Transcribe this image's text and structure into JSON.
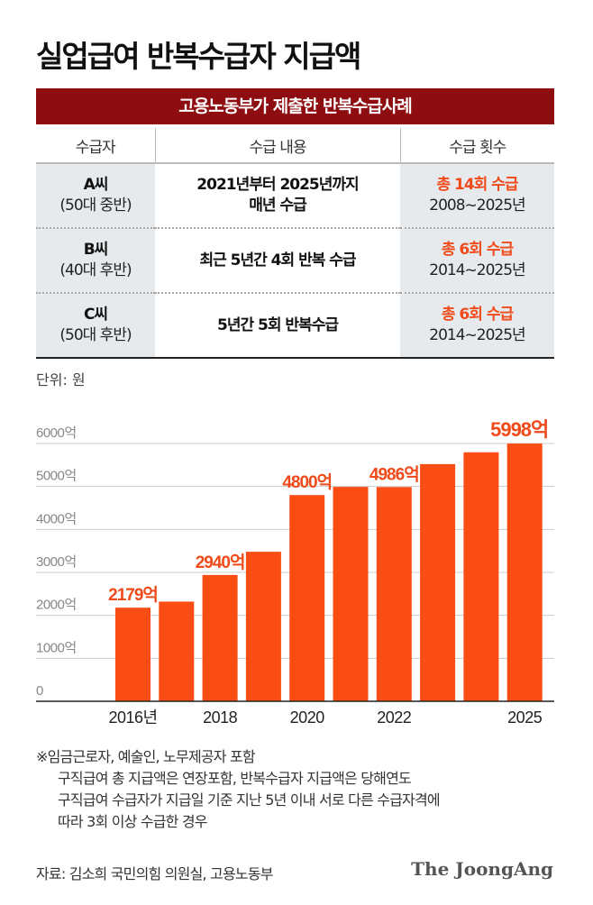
{
  "title": "실업급여 반복수급자 지급액",
  "table": {
    "caption": "고용노동부가 제출한 반복수급사례",
    "headers": [
      "수급자",
      "수급 내용",
      "수급 횟수"
    ],
    "rows": [
      {
        "name": "A씨",
        "age": "(50대 중반)",
        "content": [
          "2021년부터 2025년까지",
          "매년 수급"
        ],
        "count": "총 14회 수급",
        "period": "2008~2025년"
      },
      {
        "name": "B씨",
        "age": "(40대 후반)",
        "content": [
          "최근 5년간 4회 반복 수급"
        ],
        "count": "총 6회 수급",
        "period": "2014~2025년"
      },
      {
        "name": "C씨",
        "age": "(50대 후반)",
        "content": [
          "5년간 5회 반복수급"
        ],
        "count": "총 6회 수급",
        "period": "2014~2025년"
      }
    ]
  },
  "unit": "단위: 원",
  "chart_data": {
    "type": "bar",
    "categories": [
      "2016",
      "2017",
      "2018",
      "2019",
      "2020",
      "2021",
      "2022",
      "2023",
      "2024",
      "2025"
    ],
    "x_tick_labels": [
      {
        "index": 0,
        "label": "2016년"
      },
      {
        "index": 2,
        "label": "2018"
      },
      {
        "index": 4,
        "label": "2020"
      },
      {
        "index": 6,
        "label": "2022"
      },
      {
        "index": 9,
        "label": "2025"
      }
    ],
    "values": [
      2179,
      2320,
      2940,
      3480,
      4800,
      4990,
      4986,
      5520,
      5795,
      5998
    ],
    "data_labels": [
      {
        "index": 0,
        "label": "2179억"
      },
      {
        "index": 2,
        "label": "2940억"
      },
      {
        "index": 4,
        "label": "4800억"
      },
      {
        "index": 6,
        "label": "4986억"
      },
      {
        "index": 9,
        "label": "5998억"
      }
    ],
    "y_ticks": [
      "0",
      "1000억",
      "2000억",
      "3000억",
      "4000억",
      "5000억",
      "6000억"
    ],
    "ylim": [
      0,
      6000
    ],
    "grid": true,
    "bar_color": "#fa4d14",
    "label_color": "#f04a1a"
  },
  "notes": [
    "※임금근로자, 예술인, 노무제공자 포함",
    "구직급여 총 지급액은 연장포함, 반복수급자 지급액은 당해연도",
    "구직급여 수급자가 지급일 기준 지난 5년 이내 서로 다른 수급자격에",
    "따라 3회 이상 수급한 경우"
  ],
  "source": "자료: 김소희 국민의힘 의원실, 고용노동부",
  "logo": "The JoongAng"
}
